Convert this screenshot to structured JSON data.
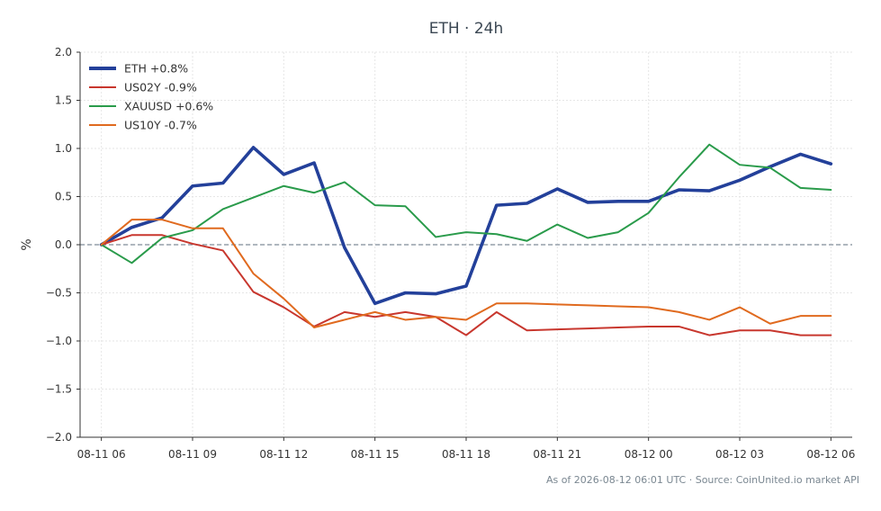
{
  "colors": {
    "background": "#ffffff",
    "axis": "#333333",
    "grid": "#e6e6e6",
    "zero_line": "#7f8c99",
    "title": "#3b4753",
    "text": "#333333",
    "footer": "#7a8791"
  },
  "footer": "As of 2026-08-12 06:01 UTC · Source: CoinUnited.io market API",
  "chart_data": {
    "type": "line",
    "title": "ETH · 24h",
    "xlabel": "",
    "ylabel": "%",
    "ylim": [
      -2.0,
      2.0
    ],
    "xlim": [
      -0.7,
      24.7
    ],
    "yticks": [
      -2.0,
      -1.5,
      -1.0,
      -0.5,
      0.0,
      0.5,
      1.0,
      1.5,
      2.0
    ],
    "ytick_labels": [
      "−2.0",
      "−1.5",
      "−1.0",
      "−0.5",
      "0.0",
      "0.5",
      "1.0",
      "1.5",
      "2.0"
    ],
    "xticks": [
      0,
      3,
      6,
      9,
      12,
      15,
      18,
      21,
      24
    ],
    "xtick_labels": [
      "08-11 06",
      "08-11 09",
      "08-11 12",
      "08-11 15",
      "08-11 18",
      "08-11 21",
      "08-12 00",
      "08-12 03",
      "08-12 06"
    ],
    "x": [
      0,
      1,
      2,
      3,
      4,
      5,
      6,
      7,
      8,
      9,
      10,
      11,
      12,
      13,
      14,
      15,
      16,
      17,
      18,
      19,
      20,
      21,
      22,
      23,
      24
    ],
    "grid": true,
    "zero_line": true,
    "legend_position": "top-left",
    "series": [
      {
        "name": "ETH +0.8%",
        "color": "#23409a",
        "width": 3.6,
        "values": [
          0.0,
          0.18,
          0.28,
          0.61,
          0.64,
          1.01,
          0.73,
          0.85,
          -0.03,
          -0.61,
          -0.5,
          -0.51,
          -0.43,
          0.41,
          0.43,
          0.58,
          0.44,
          0.45,
          0.45,
          0.57,
          0.56,
          0.67,
          0.81,
          0.94,
          0.84
        ]
      },
      {
        "name": "US02Y -0.9%",
        "color": "#c8372e",
        "width": 2,
        "values": [
          0.0,
          0.1,
          0.1,
          0.01,
          -0.06,
          -0.49,
          -0.65,
          -0.85,
          -0.7,
          -0.75,
          -0.7,
          -0.75,
          -0.94,
          -0.7,
          -0.89,
          -0.88,
          -0.87,
          -0.86,
          -0.85,
          -0.85,
          -0.94,
          -0.89,
          -0.89,
          -0.94,
          -0.94
        ]
      },
      {
        "name": "XAUUSD +0.6%",
        "color": "#2a9b4b",
        "width": 2,
        "values": [
          0.0,
          -0.19,
          0.07,
          0.15,
          0.37,
          0.49,
          0.61,
          0.54,
          0.65,
          0.41,
          0.4,
          0.08,
          0.13,
          0.11,
          0.04,
          0.21,
          0.07,
          0.13,
          0.33,
          0.7,
          1.04,
          0.83,
          0.8,
          0.59,
          0.57
        ]
      },
      {
        "name": "US10Y -0.7%",
        "color": "#e06a1f",
        "width": 2,
        "values": [
          0.0,
          0.26,
          0.26,
          0.17,
          0.17,
          -0.3,
          -0.56,
          -0.86,
          -0.78,
          -0.7,
          -0.78,
          -0.75,
          -0.78,
          -0.61,
          -0.61,
          -0.62,
          -0.63,
          -0.64,
          -0.65,
          -0.7,
          -0.78,
          -0.65,
          -0.82,
          -0.74,
          -0.74
        ]
      }
    ]
  }
}
